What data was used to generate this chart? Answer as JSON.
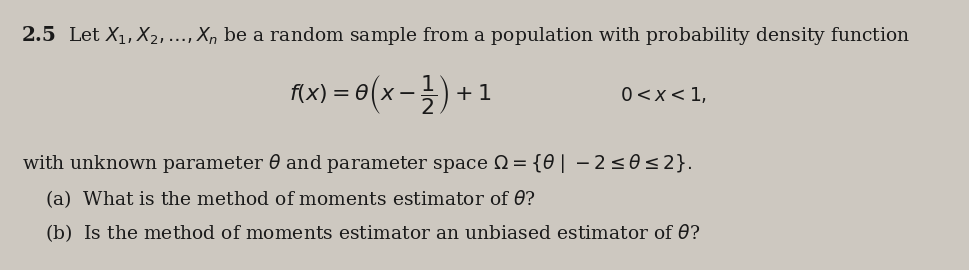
{
  "background_color": "#cdc8c0",
  "number_text": "2.5",
  "line1": "Let $X_1, X_2, \\ldots, X_n$ be a random sample from a population with probability density function",
  "formula": "$f(x) = \\theta\\left(x - \\dfrac{1}{2}\\right) + 1$",
  "domain": "$0 < x < 1,$",
  "line3": "with unknown parameter $\\theta$ and parameter space $\\Omega = \\{\\theta\\mid -2 \\leq \\theta \\leq 2\\}.$",
  "line4a": "(a)  What is the method of moments estimator of $\\theta$?",
  "line4b": "(b)  Is the method of moments estimator an unbiased estimator of $\\theta$?",
  "font_size_main": 13.5,
  "font_size_number": 14.5,
  "font_size_formula": 16,
  "text_color": "#1a1a1a"
}
